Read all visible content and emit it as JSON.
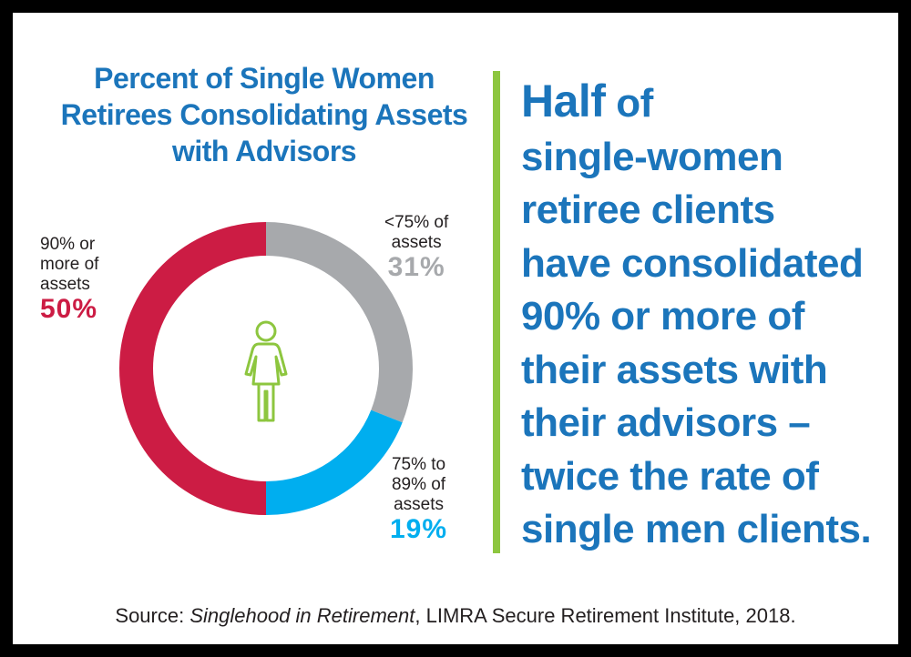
{
  "colors": {
    "title_blue": "#1b75bb",
    "divider_green": "#8dc63f",
    "slice_red": "#cc1c44",
    "slice_gray": "#a7a9ac",
    "slice_blue": "#00aeef",
    "icon_green": "#8dc63f",
    "text_dark": "#231f20"
  },
  "icon": "woman-figure-icon",
  "chart_data": {
    "type": "pie",
    "title_lines": [
      "Percent of Single Women",
      "Retirees Consolidating Assets",
      "with Advisors"
    ],
    "slices": [
      {
        "label_lines": [
          "<75% of",
          "assets"
        ],
        "value": 31,
        "value_text": "31%",
        "color": "#a7a9ac"
      },
      {
        "label_lines": [
          "75% to",
          "89% of",
          "assets"
        ],
        "value": 19,
        "value_text": "19%",
        "color": "#00aeef"
      },
      {
        "label_lines": [
          "90% or",
          "more of",
          "assets"
        ],
        "value": 50,
        "value_text": "50%",
        "color": "#cc1c44"
      }
    ],
    "donut": true
  },
  "headline": {
    "emphasis": "Half",
    "first_line_rest": " of",
    "lines": [
      "single-women",
      "retiree clients",
      "have consolidated",
      "90% or more of",
      "their assets with",
      "their advisors –",
      "twice the rate of",
      "single men clients."
    ]
  },
  "source": {
    "prefix": "Source: ",
    "title": "Singlehood in Retirement",
    "suffix": ", LIMRA Secure Retirement Institute, 2018."
  }
}
